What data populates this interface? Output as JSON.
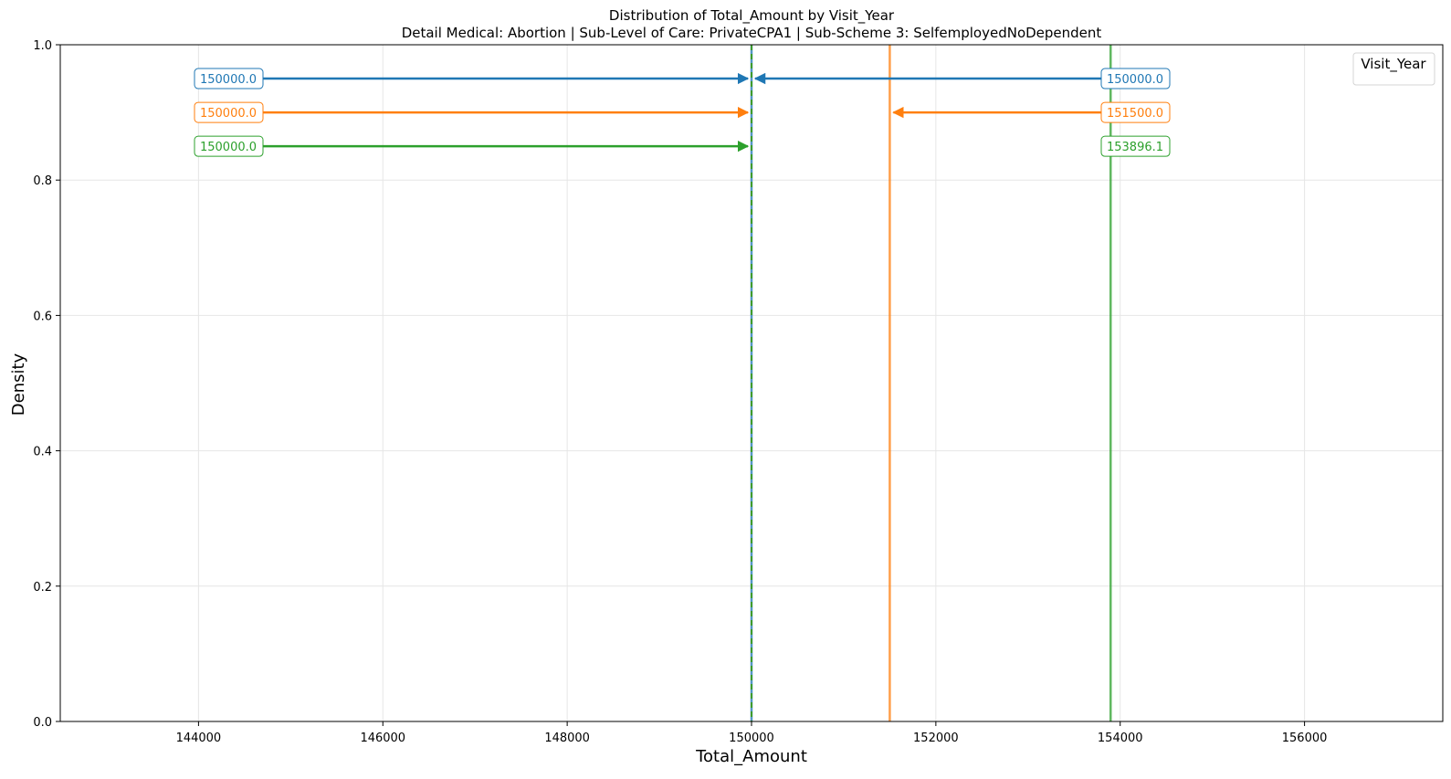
{
  "chart_data": {
    "type": "line",
    "title": "Distribution of Total_Amount by Visit_Year",
    "subtitle": "Detail Medical: Abortion | Sub-Level of Care: PrivateCPA1 | Sub-Scheme 3: SelfemployedNoDependent",
    "xlabel": "Total_Amount",
    "ylabel": "Density",
    "xlim": [
      142500,
      157500
    ],
    "ylim": [
      0,
      1.0
    ],
    "x_ticks": [
      144000,
      146000,
      148000,
      150000,
      152000,
      154000,
      156000
    ],
    "y_ticks": [
      "0.0",
      "0.2",
      "0.4",
      "0.6",
      "0.8",
      "1.0"
    ],
    "grid": true,
    "legend": {
      "title": "Visit_Year",
      "placement": "top-right",
      "entries": []
    },
    "series": [
      {
        "color": "#1f77b4",
        "mean": 150000.0,
        "median": 150000.0,
        "left_label": "150000.0",
        "right_label": "150000.0",
        "label_y": 0.95
      },
      {
        "color": "#ff7f0e",
        "mean": 151500.0,
        "median": 150000.0,
        "left_label": "150000.0",
        "right_label": "151500.0",
        "label_y": 0.9
      },
      {
        "color": "#2ca02c",
        "mean": 153896.1,
        "median": 150000.0,
        "left_label": "150000.0",
        "right_label": "153896.1",
        "label_y": 0.85
      }
    ]
  }
}
